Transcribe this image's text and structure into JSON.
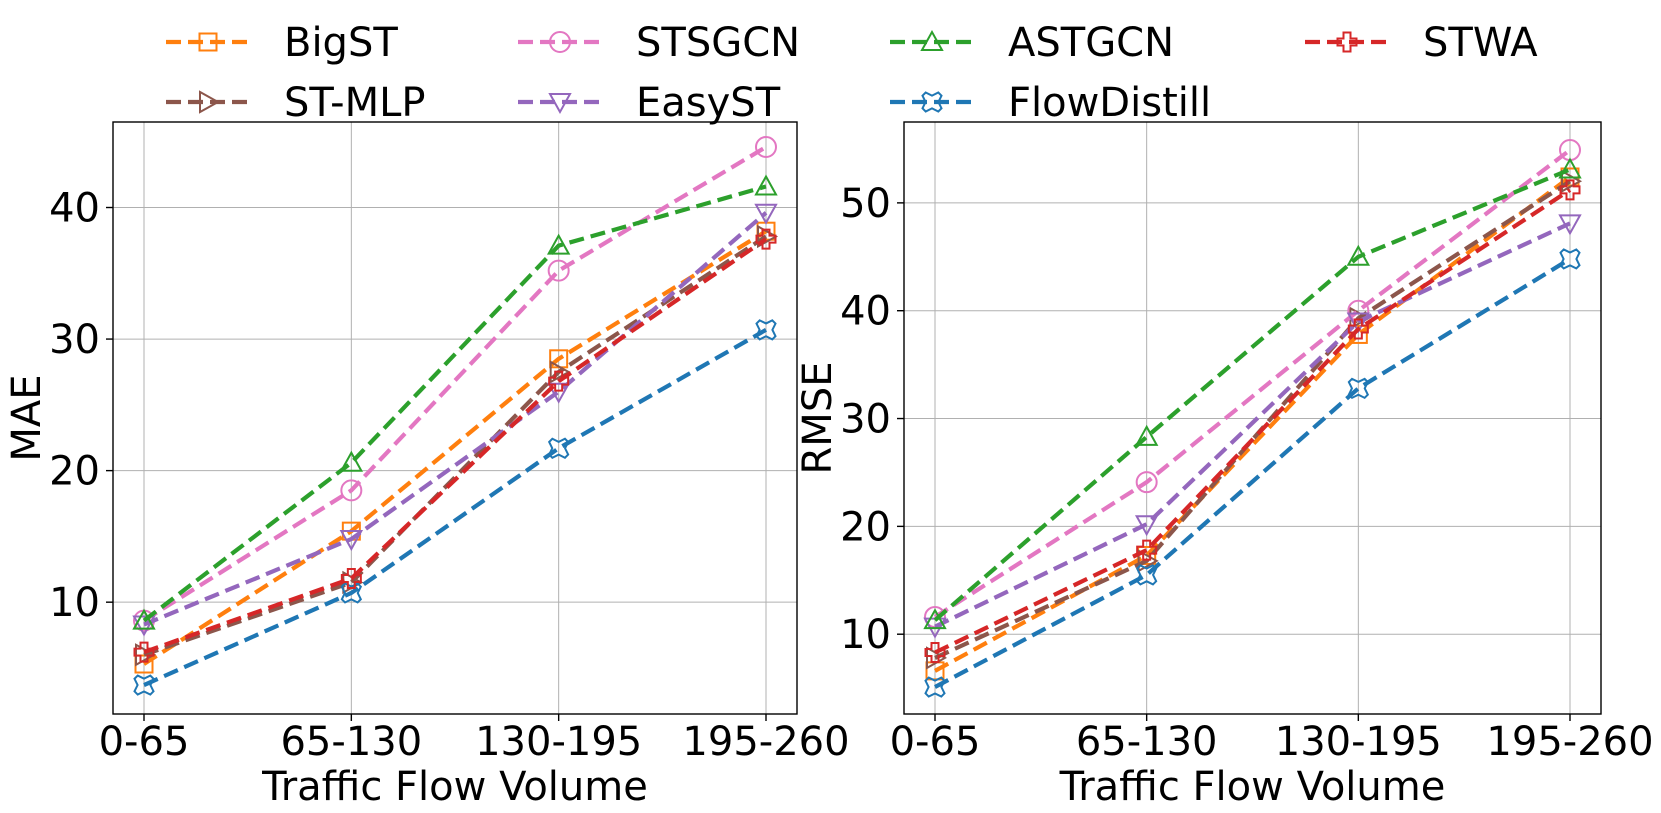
{
  "chart_data": [
    {
      "type": "line",
      "xlabel": "Traffic Flow Volume",
      "ylabel": "MAE",
      "categories": [
        "0-65",
        "65-130",
        "130-195",
        "195-260"
      ],
      "ylim": [
        1.5,
        46.5
      ],
      "yticks": [
        10,
        20,
        30,
        40
      ],
      "grid": true,
      "series": [
        {
          "name": "BigST",
          "values": [
            5.3,
            15.4,
            28.5,
            38.2
          ]
        },
        {
          "name": "ST-MLP",
          "values": [
            6.0,
            11.5,
            27.5,
            37.8
          ]
        },
        {
          "name": "STSGCN",
          "values": [
            8.6,
            18.5,
            35.2,
            44.6
          ]
        },
        {
          "name": "EasyST",
          "values": [
            8.3,
            14.8,
            26.0,
            39.6
          ]
        },
        {
          "name": "ASTGCN",
          "values": [
            8.6,
            20.6,
            37.1,
            41.6
          ]
        },
        {
          "name": "FlowDistill",
          "values": [
            3.7,
            10.7,
            21.7,
            30.7
          ]
        },
        {
          "name": "STWA",
          "values": [
            6.2,
            11.8,
            26.8,
            37.6
          ]
        }
      ]
    },
    {
      "type": "line",
      "xlabel": "Traffic Flow Volume",
      "ylabel": "RMSE",
      "categories": [
        "0-65",
        "65-130",
        "130-195",
        "195-260"
      ],
      "ylim": [
        2.6,
        57.5
      ],
      "yticks": [
        10,
        20,
        30,
        40,
        50
      ],
      "grid": true,
      "series": [
        {
          "name": "BigST",
          "values": [
            6.6,
            17.3,
            37.8,
            52.4
          ]
        },
        {
          "name": "ST-MLP",
          "values": [
            7.8,
            16.8,
            39.3,
            52.0
          ]
        },
        {
          "name": "STSGCN",
          "values": [
            11.6,
            24.1,
            40.0,
            54.9
          ]
        },
        {
          "name": "EasyST",
          "values": [
            10.7,
            20.2,
            39.0,
            48.1
          ]
        },
        {
          "name": "ASTGCN",
          "values": [
            11.3,
            28.3,
            45.0,
            53.1
          ]
        },
        {
          "name": "FlowDistill",
          "values": [
            5.1,
            15.5,
            32.8,
            44.8
          ]
        },
        {
          "name": "STWA",
          "values": [
            8.3,
            17.8,
            38.3,
            51.2
          ]
        }
      ]
    }
  ],
  "legend": {
    "placement": "top",
    "items": [
      {
        "name": "BigST",
        "color": "#ff7f0e",
        "marker": "square"
      },
      {
        "name": "STSGCN",
        "color": "#e377c2",
        "marker": "circle"
      },
      {
        "name": "ASTGCN",
        "color": "#2ca02c",
        "marker": "triangle-up"
      },
      {
        "name": "STWA",
        "color": "#d62728",
        "marker": "plus"
      },
      {
        "name": "ST-MLP",
        "color": "#8c564b",
        "marker": "triangle-right"
      },
      {
        "name": "EasyST",
        "color": "#9467bd",
        "marker": "triangle-down"
      },
      {
        "name": "FlowDistill",
        "color": "#1f77b4",
        "marker": "x"
      }
    ]
  },
  "series_style": {
    "BigST": {
      "color": "#ff7f0e",
      "marker": "square"
    },
    "ST-MLP": {
      "color": "#8c564b",
      "marker": "triangle-right"
    },
    "STSGCN": {
      "color": "#e377c2",
      "marker": "circle"
    },
    "EasyST": {
      "color": "#9467bd",
      "marker": "triangle-down"
    },
    "ASTGCN": {
      "color": "#2ca02c",
      "marker": "triangle-up"
    },
    "FlowDistill": {
      "color": "#1f77b4",
      "marker": "x"
    },
    "STWA": {
      "color": "#d62728",
      "marker": "plus"
    }
  },
  "draw_order": [
    "BigST",
    "ST-MLP",
    "STSGCN",
    "EasyST",
    "ASTGCN",
    "FlowDistill",
    "STWA"
  ]
}
